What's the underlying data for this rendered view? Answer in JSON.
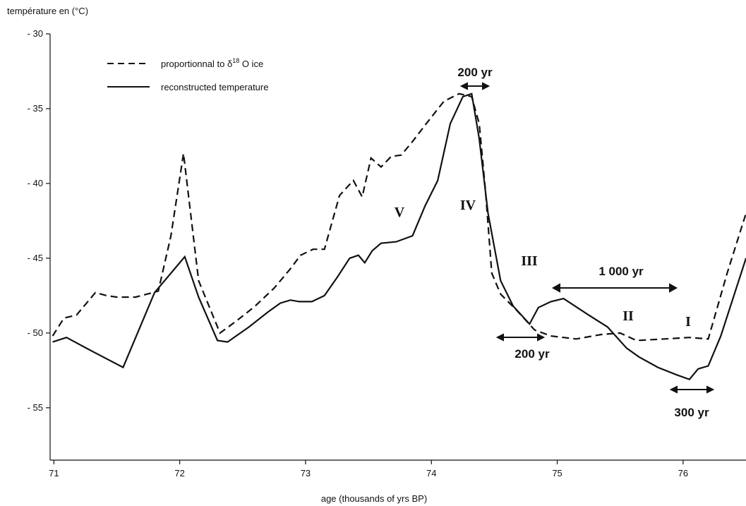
{
  "chart_data": {
    "type": "line",
    "ylabel": "température en (°C)",
    "xlabel": "age (thousands of yrs BP)",
    "xlim": [
      70.97,
      76.5
    ],
    "ylim": [
      -58.5,
      -30
    ],
    "xticks": [
      {
        "value": 71,
        "label": "71"
      },
      {
        "value": 72,
        "label": "72"
      },
      {
        "value": 73,
        "label": "73"
      },
      {
        "value": 74,
        "label": "74"
      },
      {
        "value": 75,
        "label": "75"
      },
      {
        "value": 76,
        "label": "76"
      }
    ],
    "yticks": [
      {
        "value": -30,
        "label": "- 30"
      },
      {
        "value": -35,
        "label": "- 35"
      },
      {
        "value": -40,
        "label": "- 40"
      },
      {
        "value": -45,
        "label": "- 45"
      },
      {
        "value": -50,
        "label": "- 50"
      },
      {
        "value": -55,
        "label": "- 55"
      }
    ],
    "legend": {
      "position": "top-left",
      "entries": [
        {
          "label_main": "proportionnal to δ",
          "label_sup": "18",
          "label_tail": " O ice",
          "style": "dashed"
        },
        {
          "label_main": "reconstructed temperature",
          "style": "solid"
        }
      ]
    },
    "series": [
      {
        "name": "proportionnal to δ18 O ice",
        "style": "dashed",
        "color": "#111111",
        "x": [
          70.99,
          71.08,
          71.18,
          71.33,
          71.42,
          71.5,
          71.65,
          71.83,
          71.93,
          72.03,
          72.15,
          72.32,
          72.45,
          72.6,
          72.75,
          72.88,
          72.96,
          73.06,
          73.15,
          73.27,
          73.38,
          73.45,
          73.52,
          73.6,
          73.68,
          73.76,
          73.85,
          73.95,
          74.1,
          74.22,
          74.32,
          74.38,
          74.43,
          74.48,
          74.55,
          74.68,
          74.82,
          74.95,
          75.15,
          75.35,
          75.5,
          75.63,
          75.85,
          76.05,
          76.2,
          76.35,
          76.5
        ],
        "values": [
          -50.2,
          -49.0,
          -48.8,
          -47.3,
          -47.5,
          -47.6,
          -47.6,
          -47.2,
          -43.5,
          -38.0,
          -46.5,
          -50.0,
          -49.2,
          -48.2,
          -47.0,
          -45.7,
          -44.8,
          -44.4,
          -44.4,
          -40.8,
          -39.8,
          -40.9,
          -38.3,
          -38.9,
          -38.2,
          -38.1,
          -37.2,
          -36.1,
          -34.5,
          -34.0,
          -34.2,
          -36.0,
          -40.5,
          -46.0,
          -47.4,
          -48.5,
          -49.8,
          -50.2,
          -50.4,
          -50.1,
          -50.0,
          -50.5,
          -50.4,
          -50.3,
          -50.4,
          -46.0,
          -42.0
        ]
      },
      {
        "name": "reconstructed temperature",
        "style": "solid",
        "color": "#111111",
        "x": [
          70.99,
          71.1,
          71.3,
          71.55,
          71.8,
          72.04,
          72.15,
          72.3,
          72.38,
          72.55,
          72.7,
          72.8,
          72.88,
          72.95,
          73.05,
          73.15,
          73.25,
          73.35,
          73.42,
          73.47,
          73.53,
          73.6,
          73.72,
          73.85,
          73.95,
          74.05,
          74.15,
          74.25,
          74.32,
          74.38,
          74.45,
          74.55,
          74.65,
          74.78,
          74.85,
          74.95,
          75.05,
          75.25,
          75.4,
          75.55,
          75.65,
          75.8,
          75.95,
          76.05,
          76.12,
          76.2,
          76.3,
          76.5
        ],
        "values": [
          -50.6,
          -50.3,
          -51.2,
          -52.3,
          -47.3,
          -44.9,
          -47.6,
          -50.5,
          -50.6,
          -49.6,
          -48.6,
          -48.0,
          -47.8,
          -47.9,
          -47.9,
          -47.5,
          -46.3,
          -45.0,
          -44.8,
          -45.3,
          -44.5,
          -44.0,
          -43.9,
          -43.5,
          -41.5,
          -39.8,
          -36.0,
          -34.2,
          -34.0,
          -37.0,
          -42.0,
          -46.5,
          -48.2,
          -49.4,
          -48.3,
          -47.9,
          -47.7,
          -48.8,
          -49.6,
          -51.0,
          -51.6,
          -52.3,
          -52.8,
          -53.1,
          -52.4,
          -52.2,
          -50.2,
          -45.0
        ]
      }
    ],
    "annotations": {
      "text_200yr_top": "200 yr",
      "text_200yr_bottom": "200 yr",
      "text_1000yr": "1 000 yr",
      "text_300yr": "300 yr",
      "roman_V": "V",
      "roman_IV": "IV",
      "roman_III": "III",
      "roman_II": "II",
      "roman_I": "I"
    }
  }
}
